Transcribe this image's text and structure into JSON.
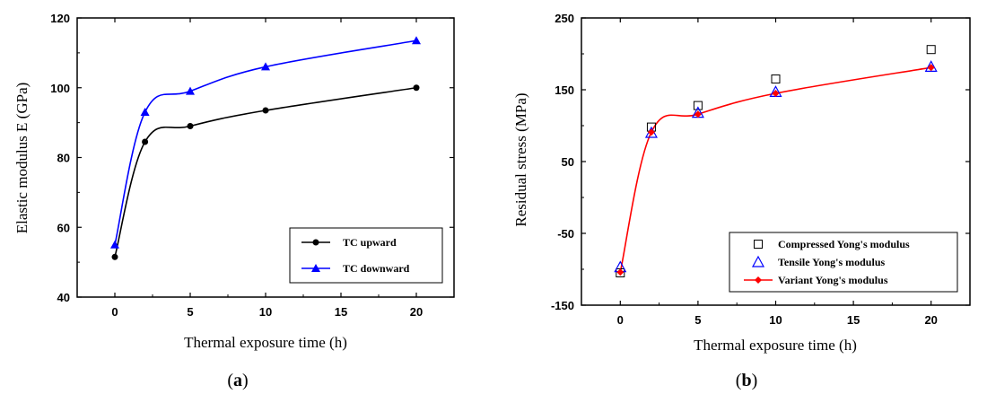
{
  "chart_data": [
    {
      "type": "line",
      "panel_label": "a",
      "xlabel": "Thermal exposure time (h)",
      "ylabel": "Elastic modulus E (GPa)",
      "xlim": [
        -2.5,
        22.5
      ],
      "ylim": [
        40,
        120
      ],
      "xticks": [
        0,
        5,
        10,
        15,
        20
      ],
      "yticks": [
        40,
        60,
        80,
        100,
        120
      ],
      "x": [
        0,
        2,
        5,
        10,
        20
      ],
      "series": [
        {
          "name": "TC upward",
          "values": [
            51.5,
            84.5,
            89,
            93.5,
            100
          ],
          "color": "#000000",
          "marker": "circle"
        },
        {
          "name": "TC downward",
          "values": [
            55,
            93,
            99,
            106,
            113.5
          ],
          "color": "#0000ff",
          "marker": "triangle"
        }
      ],
      "legend_position": "bottom-right"
    },
    {
      "type": "scatter",
      "panel_label": "b",
      "xlabel": "Thermal exposure time (h)",
      "ylabel": "Residual stress (MPa)",
      "xlim": [
        -2.5,
        22.5
      ],
      "ylim": [
        -150,
        250
      ],
      "xticks": [
        0,
        5,
        10,
        15,
        20
      ],
      "yticks": [
        -150,
        -50,
        50,
        150,
        250
      ],
      "x": [
        0,
        2,
        5,
        10,
        20
      ],
      "series": [
        {
          "name": "Compressed Yong's modulus",
          "values": [
            -105,
            98,
            128,
            165,
            206
          ],
          "color": "#000000",
          "marker": "open-square"
        },
        {
          "name": "Tensile Yong's modulus",
          "values": [
            -97,
            90,
            118,
            147,
            182
          ],
          "color": "#0000ff",
          "marker": "open-triangle"
        },
        {
          "name": "Variant Yong's modulus",
          "values": [
            -104,
            91,
            116,
            145,
            181
          ],
          "color": "#ff0000",
          "marker": "diamond-line"
        }
      ],
      "legend_position": "bottom-right"
    }
  ]
}
